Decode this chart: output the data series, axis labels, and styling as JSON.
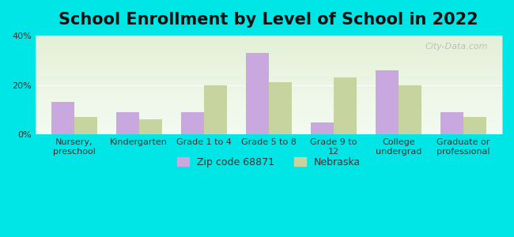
{
  "title": "School Enrollment by Level of School in 2022",
  "categories": [
    "Nursery,\npreschool",
    "Kindergarten",
    "Grade 1 to 4",
    "Grade 5 to 8",
    "Grade 9 to\n12",
    "College\nundergrad",
    "Graduate or\nprofessional"
  ],
  "zip_values": [
    13,
    9,
    9,
    33,
    5,
    26,
    9
  ],
  "nebraska_values": [
    7,
    6,
    20,
    21,
    23,
    20,
    7
  ],
  "zip_color": "#c9a8e0",
  "nebraska_color": "#c8d4a0",
  "background_outer": "#00e5e5",
  "background_inner_top": "#f0f8f0",
  "background_inner_bottom": "#e8f0d8",
  "ylim": [
    0,
    40
  ],
  "yticks": [
    0,
    20,
    40
  ],
  "ytick_labels": [
    "0%",
    "20%",
    "40%"
  ],
  "legend_zip_label": "Zip code 68871",
  "legend_nebraska_label": "Nebraska",
  "watermark": "City-Data.com",
  "bar_width": 0.35,
  "title_fontsize": 15,
  "tick_fontsize": 8,
  "legend_fontsize": 9
}
